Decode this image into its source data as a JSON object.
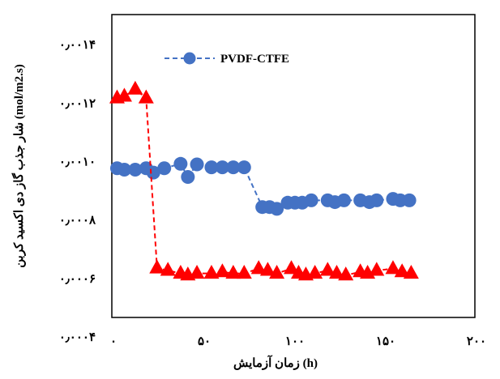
{
  "chart_data": {
    "type": "line",
    "title": "",
    "xlabel": "زمان آزمایش (h)",
    "ylabel": "شار جذب گاز دی اکسید کربن (mol/m2.s)",
    "xlim": [
      0,
      200
    ],
    "ylim": [
      0.0003,
      0.0015
    ],
    "x_ticks": [
      0,
      50,
      100,
      150,
      200
    ],
    "x_tick_labels": [
      "۰",
      "۵۰",
      "۱۰۰",
      "۱۵۰",
      "۲۰۰"
    ],
    "y_ticks": [
      0.0004,
      0.0006,
      0.0008,
      0.001,
      0.0012,
      0.0014
    ],
    "y_tick_labels": [
      "۰٫۰۰۰۴",
      "۰٫۰۰۰۶",
      "۰٫۰۰۰۸",
      "۰٫۰۰۱۰",
      "۰٫۰۰۱۲",
      "۰٫۰۰۱۴"
    ],
    "grid": false,
    "legend_position": "top-left",
    "series": [
      {
        "name": "PVDF-CTFE",
        "color": "#4472C4",
        "marker": "circle",
        "line_style": "dashed",
        "show_in_legend": true,
        "x": [
          2,
          6,
          12,
          18,
          22,
          28,
          37,
          41,
          46,
          54,
          60,
          66,
          72,
          82,
          86,
          90,
          96,
          100,
          104,
          109,
          118,
          122,
          127,
          136,
          141,
          145,
          154,
          158,
          163
        ],
        "y": [
          0.000977,
          0.000972,
          0.000972,
          0.000977,
          0.000962,
          0.000977,
          0.000992,
          0.000947,
          0.00099,
          0.00098,
          0.00098,
          0.00098,
          0.00098,
          0.000844,
          0.000844,
          0.000838,
          0.000859,
          0.000859,
          0.000859,
          0.000867,
          0.000867,
          0.000861,
          0.000867,
          0.000867,
          0.000861,
          0.000867,
          0.000872,
          0.000867,
          0.000867
        ]
      },
      {
        "name": "",
        "color": "#FF0000",
        "marker": "triangle",
        "line_style": "dashed",
        "show_in_legend": false,
        "x": [
          2,
          6,
          12,
          18,
          24,
          30,
          37,
          41,
          46,
          54,
          60,
          66,
          72,
          80,
          85,
          90,
          98,
          102,
          106,
          111,
          118,
          123,
          128,
          136,
          140,
          145,
          154,
          159,
          164
        ],
        "y": [
          0.001217,
          0.001223,
          0.001247,
          0.001217,
          0.000635,
          0.000627,
          0.000617,
          0.000611,
          0.000617,
          0.000617,
          0.000622,
          0.000617,
          0.000617,
          0.000633,
          0.000627,
          0.000617,
          0.000633,
          0.000617,
          0.000611,
          0.000617,
          0.000627,
          0.000617,
          0.000611,
          0.000622,
          0.000617,
          0.000627,
          0.000633,
          0.000622,
          0.000617
        ]
      }
    ]
  }
}
